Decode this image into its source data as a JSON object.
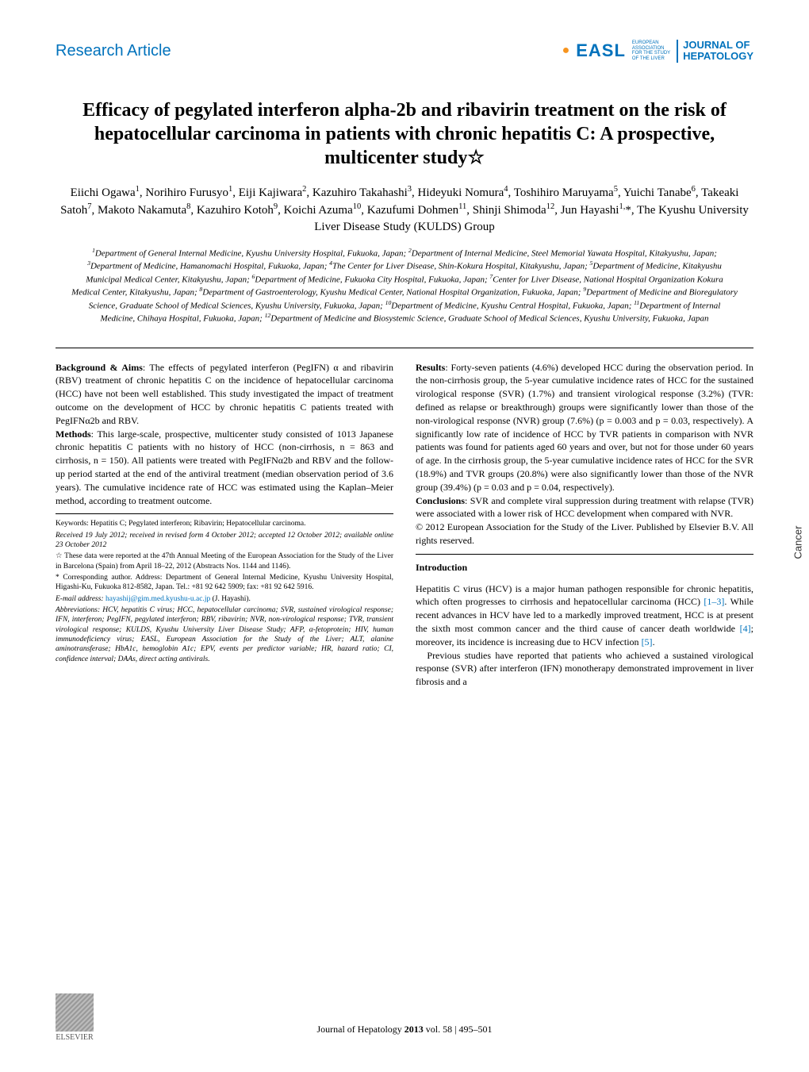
{
  "header": {
    "section_label": "Research Article",
    "easl_text": "EASL",
    "easl_subtitle": "EUROPEAN\nASSOCIATION\nFOR THE STUDY\nOF THE LIVER",
    "journal_name": "JOURNAL OF\nHEPATOLOGY"
  },
  "title": "Efficacy of pegylated interferon alpha-2b and ribavirin treatment on the risk of hepatocellular carcinoma in patients with chronic hepatitis C: A prospective, multicenter study☆",
  "authors_html": "Eiichi Ogawa<sup>1</sup>, Norihiro Furusyo<sup>1</sup>, Eiji Kajiwara<sup>2</sup>, Kazuhiro Takahashi<sup>3</sup>, Hideyuki Nomura<sup>4</sup>, Toshihiro Maruyama<sup>5</sup>, Yuichi Tanabe<sup>6</sup>, Takeaki Satoh<sup>7</sup>, Makoto Nakamuta<sup>8</sup>, Kazuhiro Kotoh<sup>9</sup>, Koichi Azuma<sup>10</sup>, Kazufumi Dohmen<sup>11</sup>, Shinji Shimoda<sup>12</sup>, Jun Hayashi<sup>1,</sup>*, The Kyushu University Liver Disease Study (KULDS) Group",
  "affiliations_html": "<sup>1</sup>Department of General Internal Medicine, Kyushu University Hospital, Fukuoka, Japan; <sup>2</sup>Department of Internal Medicine, Steel Memorial Yawata Hospital, Kitakyushu, Japan; <sup>3</sup>Department of Medicine, Hamanomachi Hospital, Fukuoka, Japan; <sup>4</sup>The Center for Liver Disease, Shin-Kokura Hospital, Kitakyushu, Japan; <sup>5</sup>Department of Medicine, Kitakyushu Municipal Medical Center, Kitakyushu, Japan; <sup>6</sup>Department of Medicine, Fukuoka City Hospital, Fukuoka, Japan; <sup>7</sup>Center for Liver Disease, National Hospital Organization Kokura Medical Center, Kitakyushu, Japan; <sup>8</sup>Department of Gastroenterology, Kyushu Medical Center, National Hospital Organization, Fukuoka, Japan; <sup>9</sup>Department of Medicine and Bioregulatory Science, Graduate School of Medical Sciences, Kyushu University, Fukuoka, Japan; <sup>10</sup>Department of Medicine, Kyushu Central Hospital, Fukuoka, Japan; <sup>11</sup>Department of Internal Medicine, Chihaya Hospital, Fukuoka, Japan; <sup>12</sup>Department of Medicine and Biosystemic Science, Graduate School of Medical Sciences, Kyushu University, Fukuoka, Japan",
  "abstract": {
    "background_label": "Background & Aims",
    "background_text": ": The effects of pegylated interferon (PegIFN) α and ribavirin (RBV) treatment of chronic hepatitis C on the incidence of hepatocellular carcinoma (HCC) have not been well established. This study investigated the impact of treatment outcome on the development of HCC by chronic hepatitis C patients treated with PegIFNα2b and RBV.",
    "methods_label": "Methods",
    "methods_text": ": This large-scale, prospective, multicenter study consisted of 1013 Japanese chronic hepatitis C patients with no history of HCC (non-cirrhosis, n = 863 and cirrhosis, n = 150). All patients were treated with PegIFNα2b and RBV and the follow-up period started at the end of the antiviral treatment (median observation period of 3.6 years). The cumulative incidence rate of HCC was estimated using the Kaplan–Meier method, according to treatment outcome.",
    "results_label": "Results",
    "results_text": ": Forty-seven patients (4.6%) developed HCC during the observation period. In the non-cirrhosis group, the 5-year cumulative incidence rates of HCC for the sustained virological response (SVR) (1.7%) and transient virological response (3.2%) (TVR: defined as relapse or breakthrough) groups were significantly lower than those of the non-virological response (NVR) group (7.6%) (p = 0.003 and p = 0.03, respectively). A significantly low rate of incidence of HCC by TVR patients in comparison with NVR patients was found for patients aged 60 years and over, but not for those under 60 years of age. In the cirrhosis group, the 5-year cumulative incidence rates of HCC for the SVR (18.9%) and TVR groups (20.8%) were also significantly lower than those of the NVR group (39.4%) (p = 0.03 and p = 0.04, respectively).",
    "conclusions_label": "Conclusions",
    "conclusions_text": ": SVR and complete viral suppression during treatment with relapse (TVR) were associated with a lower risk of HCC development when compared with NVR.",
    "copyright": "© 2012 European Association for the Study of the Liver. Published by Elsevier B.V. All rights reserved."
  },
  "footnotes": {
    "keywords": "Keywords: Hepatitis C; Pegylated interferon; Ribavirin; Hepatocellular carcinoma.",
    "received": "Received 19 July 2012; received in revised form 4 October 2012; accepted 12 October 2012; available online 23 October 2012",
    "star_note": "☆ These data were reported at the 47th Annual Meeting of the European Association for the Study of the Liver in Barcelona (Spain) from April 18–22, 2012 (Abstracts Nos. 1144 and 1146).",
    "corresponding": "* Corresponding author. Address: Department of General Internal Medicine, Kyushu University Hospital, Higashi-Ku, Fukuoka 812-8582, Japan. Tel.: +81 92 642 5909; fax: +81 92 642 5916.",
    "email_label": "E-mail address: ",
    "email": "hayashij@gim.med.kyushu-u.ac.jp",
    "email_suffix": " (J. Hayashi).",
    "abbreviations": "Abbreviations: HCV, hepatitis C virus; HCC, hepatocellular carcinoma; SVR, sustained virological response; IFN, interferon; PegIFN, pegylated interferon; RBV, ribavirin; NVR, non-virological response; TVR, transient virological response; KULDS, Kyushu University Liver Disease Study; AFP, α-fetoprotein; HIV, human immunodeficiency virus; EASL, European Association for the Study of the Liver; ALT, alanine aminotransferase; HbA1c, hemoglobin A1c; EPV, events per predictor variable; HR, hazard ratio; CI, confidence interval; DAAs, direct acting antivirals."
  },
  "introduction": {
    "heading": "Introduction",
    "para1_pre": "Hepatitis C virus (HCV) is a major human pathogen responsible for chronic hepatitis, which often progresses to cirrhosis and hepatocellular carcinoma (HCC) ",
    "ref1": "[1–3]",
    "para1_mid": ". While recent advances in HCV have led to a markedly improved treatment, HCC is at present the sixth most common cancer and the third cause of cancer death worldwide ",
    "ref2": "[4]",
    "para1_mid2": "; moreover, its incidence is increasing due to HCV infection ",
    "ref3": "[5]",
    "para1_end": ".",
    "para2": "Previous studies have reported that patients who achieved a sustained virological response (SVR) after interferon (IFN) monotherapy demonstrated improvement in liver fibrosis and a"
  },
  "footer": {
    "elsevier": "ELSEVIER",
    "citation": "Journal of Hepatology 2013 vol. 58 | 495–501"
  },
  "side_tab": "Cancer",
  "colors": {
    "brand_blue": "#0072bc",
    "text": "#000000",
    "background": "#ffffff"
  }
}
